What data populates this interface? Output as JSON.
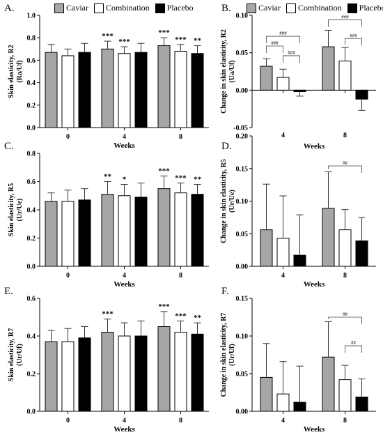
{
  "legend_top": [
    {
      "name": "Caviar",
      "color": "#a6a6a6"
    },
    {
      "name": "Combination",
      "color": "#ffffff"
    },
    {
      "name": "Placebo",
      "color": "#000000"
    }
  ],
  "legend_right": [
    {
      "name": "Caviar",
      "color": "#a6a6a6"
    },
    {
      "name": "Combination",
      "color": "#ffffff"
    },
    {
      "name": "Placebo",
      "color": "#000000"
    }
  ],
  "chart_data": [
    {
      "panel": "A.",
      "type": "bar",
      "xlabel": "Weeks",
      "ylabel": [
        "Skin elasticity, R2",
        "(Ra/Uf)"
      ],
      "categories": [
        "0",
        "4",
        "8"
      ],
      "ylim": [
        0.0,
        1.0
      ],
      "yticks": [
        0.0,
        0.2,
        0.4,
        0.6,
        0.8,
        1.0
      ],
      "tick_decimals": 1,
      "series": [
        {
          "name": "Caviar",
          "values": [
            0.67,
            0.7,
            0.73
          ],
          "errors": [
            0.07,
            0.07,
            0.07
          ]
        },
        {
          "name": "Combination",
          "values": [
            0.64,
            0.66,
            0.68
          ],
          "errors": [
            0.06,
            0.06,
            0.06
          ]
        },
        {
          "name": "Placebo",
          "values": [
            0.67,
            0.67,
            0.66
          ],
          "errors": [
            0.08,
            0.08,
            0.07
          ]
        }
      ],
      "stars": [
        {
          "group": 1,
          "bar": 0,
          "text": "***"
        },
        {
          "group": 1,
          "bar": 1,
          "text": "***"
        },
        {
          "group": 2,
          "bar": 0,
          "text": "***"
        },
        {
          "group": 2,
          "bar": 1,
          "text": "***"
        },
        {
          "group": 2,
          "bar": 2,
          "text": "**"
        }
      ],
      "brackets": []
    },
    {
      "panel": "B.",
      "type": "bar",
      "xlabel": "Weeks",
      "ylabel": [
        "Change in skin elasticity, R2",
        "(Ua/Uf)"
      ],
      "categories": [
        "4",
        "8"
      ],
      "ylim": [
        -0.05,
        0.1
      ],
      "yticks": [
        -0.05,
        0.0,
        0.05,
        0.1
      ],
      "tick_decimals": 2,
      "series": [
        {
          "name": "Caviar",
          "values": [
            0.032,
            0.058
          ],
          "errors": [
            0.01,
            0.022
          ]
        },
        {
          "name": "Combination",
          "values": [
            0.017,
            0.039
          ],
          "errors": [
            0.011,
            0.018
          ]
        },
        {
          "name": "Placebo",
          "values": [
            -0.002,
            -0.012
          ],
          "errors": [
            0.006,
            0.015
          ]
        }
      ],
      "stars": [],
      "brackets": [
        {
          "group": 0,
          "from": 0,
          "to": 1,
          "y": 0.059,
          "label": "###"
        },
        {
          "group": 0,
          "from": 1,
          "to": 2,
          "y": 0.046,
          "label": "###"
        },
        {
          "group": 0,
          "from": 0,
          "to": 2,
          "y": 0.072,
          "label": "###"
        },
        {
          "group": 1,
          "from": 1,
          "to": 2,
          "y": 0.069,
          "label": "###"
        },
        {
          "group": 1,
          "from": 0,
          "to": 2,
          "y": 0.094,
          "label": "###"
        }
      ]
    },
    {
      "panel": "C.",
      "type": "bar",
      "xlabel": "Weeks",
      "ylabel": [
        "Skin elasticity, R5",
        "(Ur/Ue)"
      ],
      "categories": [
        "0",
        "4",
        "8"
      ],
      "ylim": [
        0.0,
        0.8
      ],
      "yticks": [
        0.0,
        0.2,
        0.4,
        0.6,
        0.8
      ],
      "tick_decimals": 1,
      "series": [
        {
          "name": "Caviar",
          "values": [
            0.46,
            0.51,
            0.55
          ],
          "errors": [
            0.06,
            0.09,
            0.09
          ]
        },
        {
          "name": "Combination",
          "values": [
            0.46,
            0.5,
            0.52
          ],
          "errors": [
            0.08,
            0.08,
            0.07
          ]
        },
        {
          "name": "Placebo",
          "values": [
            0.47,
            0.49,
            0.51
          ],
          "errors": [
            0.08,
            0.1,
            0.07
          ]
        }
      ],
      "stars": [
        {
          "group": 1,
          "bar": 0,
          "text": "**"
        },
        {
          "group": 1,
          "bar": 1,
          "text": "*"
        },
        {
          "group": 2,
          "bar": 0,
          "text": "***"
        },
        {
          "group": 2,
          "bar": 1,
          "text": "***"
        },
        {
          "group": 2,
          "bar": 2,
          "text": "**"
        }
      ],
      "brackets": []
    },
    {
      "panel": "D.",
      "type": "bar",
      "xlabel": "Weeks",
      "ylabel": [
        "Change in skin elasticity, R5",
        "(Ur/Ue)"
      ],
      "categories": [
        "4",
        "8"
      ],
      "ylim": [
        0.0,
        0.2
      ],
      "yticks": [
        0.0,
        0.05,
        0.1,
        0.15,
        0.2
      ],
      "tick_decimals": 2,
      "series": [
        {
          "name": "Caviar",
          "values": [
            0.056,
            0.089
          ],
          "errors": [
            0.07,
            0.056
          ]
        },
        {
          "name": "Combination",
          "values": [
            0.043,
            0.056
          ],
          "errors": [
            0.065,
            0.031
          ]
        },
        {
          "name": "Placebo",
          "values": [
            0.017,
            0.039
          ],
          "errors": [
            0.062,
            0.036
          ]
        }
      ],
      "stars": [],
      "brackets": [
        {
          "group": 1,
          "from": 0,
          "to": 2,
          "y": 0.154,
          "label": "##"
        }
      ]
    },
    {
      "panel": "E.",
      "type": "bar",
      "xlabel": "Weeks",
      "ylabel": [
        "Skin elasticity, R7",
        "(Ur/Uf)"
      ],
      "categories": [
        "0",
        "4",
        "8"
      ],
      "ylim": [
        0.0,
        0.6
      ],
      "yticks": [
        0.0,
        0.2,
        0.4,
        0.6
      ],
      "tick_decimals": 1,
      "series": [
        {
          "name": "Caviar",
          "values": [
            0.37,
            0.42,
            0.45
          ],
          "errors": [
            0.06,
            0.07,
            0.08
          ]
        },
        {
          "name": "Combination",
          "values": [
            0.37,
            0.4,
            0.42
          ],
          "errors": [
            0.07,
            0.07,
            0.06
          ]
        },
        {
          "name": "Placebo",
          "values": [
            0.39,
            0.4,
            0.41
          ],
          "errors": [
            0.06,
            0.08,
            0.06
          ]
        }
      ],
      "stars": [
        {
          "group": 1,
          "bar": 0,
          "text": "***"
        },
        {
          "group": 2,
          "bar": 0,
          "text": "***"
        },
        {
          "group": 2,
          "bar": 1,
          "text": "***"
        },
        {
          "group": 2,
          "bar": 2,
          "text": "**"
        }
      ],
      "brackets": []
    },
    {
      "panel": "F.",
      "type": "bar",
      "xlabel": "Weeks",
      "ylabel": [
        "Change in skin elasticity, R7",
        "(Ur/Uf)"
      ],
      "categories": [
        "4",
        "8"
      ],
      "ylim": [
        0.0,
        0.15
      ],
      "yticks": [
        0.0,
        0.05,
        0.1,
        0.15
      ],
      "tick_decimals": 2,
      "series": [
        {
          "name": "Caviar",
          "values": [
            0.045,
            0.072
          ],
          "errors": [
            0.045,
            0.047
          ]
        },
        {
          "name": "Combination",
          "values": [
            0.023,
            0.042
          ],
          "errors": [
            0.043,
            0.019
          ]
        },
        {
          "name": "Placebo",
          "values": [
            0.012,
            0.019
          ],
          "errors": [
            0.048,
            0.024
          ]
        }
      ],
      "stars": [],
      "brackets": [
        {
          "group": 1,
          "from": 0,
          "to": 2,
          "y": 0.125,
          "label": "##"
        },
        {
          "group": 1,
          "from": 1,
          "to": 2,
          "y": 0.087,
          "label": "##"
        }
      ]
    }
  ]
}
